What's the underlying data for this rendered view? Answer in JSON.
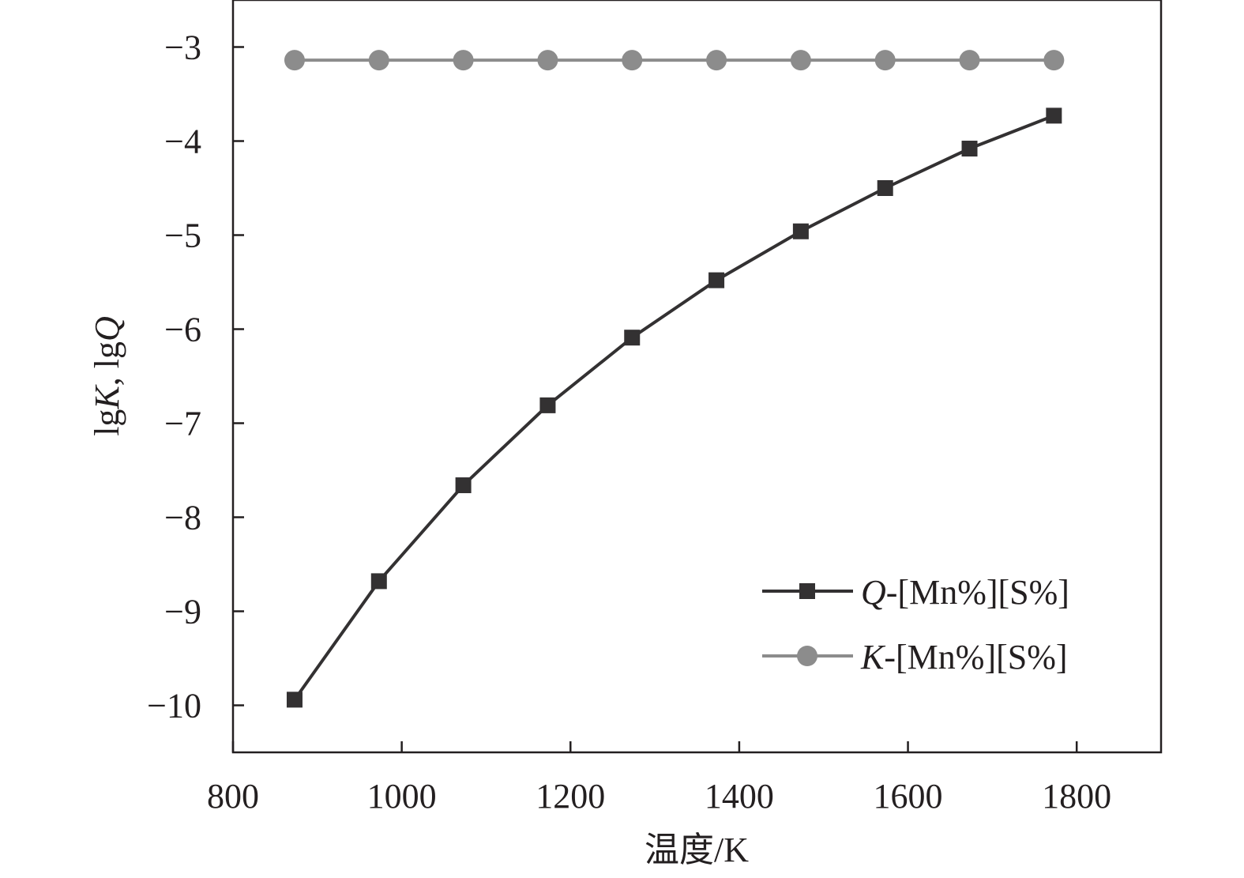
{
  "chart_data": {
    "type": "line",
    "xlabel": "温度/K",
    "ylabel_parts": [
      "lg",
      "K",
      ", lg",
      "Q"
    ],
    "xlim": [
      800,
      1900
    ],
    "ylim": [
      -10.5,
      -2.5
    ],
    "xticks": [
      800,
      1000,
      1200,
      1400,
      1600,
      1800
    ],
    "yticks": [
      -3,
      -4,
      -5,
      -6,
      -7,
      -8,
      -9,
      -10
    ],
    "ytick_labels": [
      "−3",
      "−4",
      "−5",
      "−6",
      "−7",
      "−8",
      "−9",
      "−10"
    ],
    "grid": false,
    "legend_placement": "bottom-right",
    "x": [
      873,
      973,
      1073,
      1173,
      1273,
      1373,
      1473,
      1573,
      1673,
      1773
    ],
    "series": [
      {
        "name": "Q-[Mn%][S%]",
        "name_italic": "Q",
        "name_rest": "-[Mn%][S%]",
        "marker": "square",
        "color": "#333132",
        "values": [
          -9.94,
          -8.68,
          -7.66,
          -6.81,
          -6.09,
          -5.48,
          -4.96,
          -4.5,
          -4.08,
          -3.73
        ]
      },
      {
        "name": "K-[Mn%][S%]",
        "name_italic": "K",
        "name_rest": "-[Mn%][S%]",
        "marker": "circle",
        "color": "#8c8c8c",
        "values": [
          -3.14,
          -3.14,
          -3.14,
          -3.14,
          -3.14,
          -3.14,
          -3.14,
          -3.14,
          -3.14,
          -3.14
        ]
      }
    ]
  }
}
